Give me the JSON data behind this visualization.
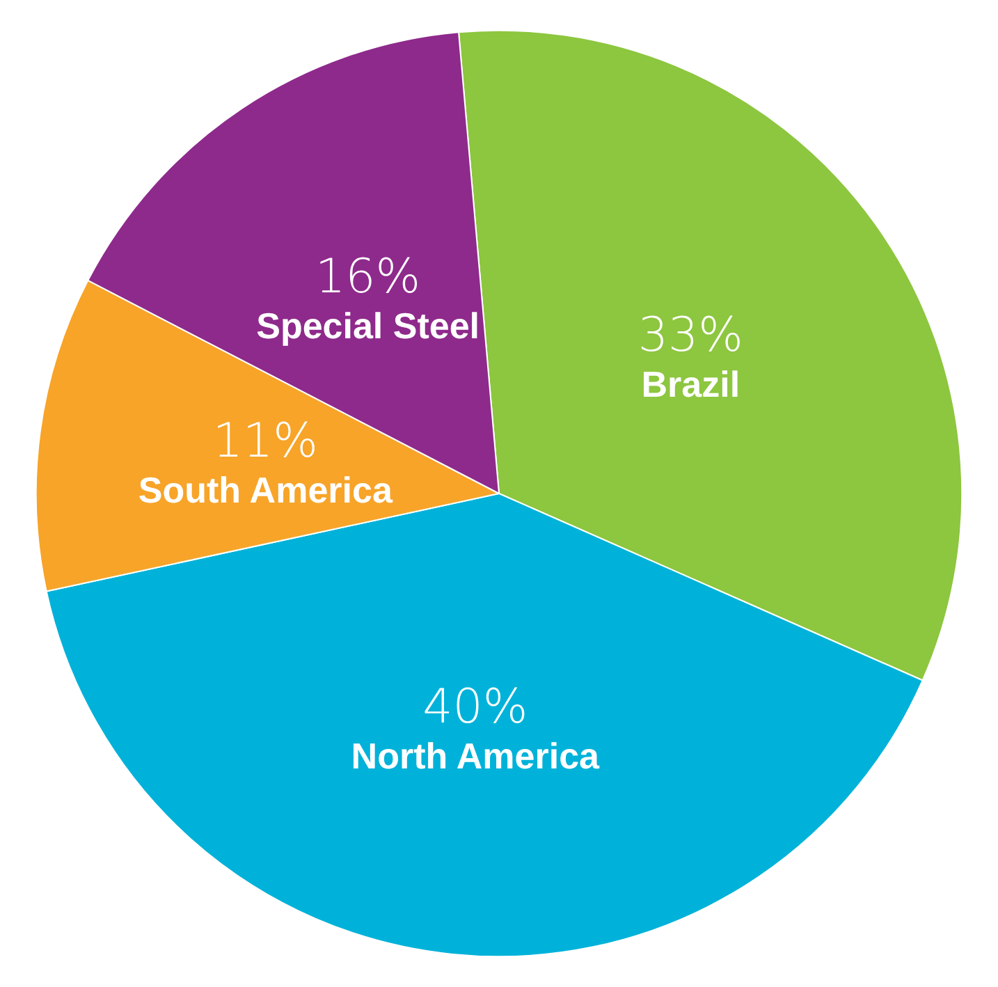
{
  "chart_data": {
    "type": "pie",
    "categories": [
      "Brazil",
      "North America",
      "South America",
      "Special Steel"
    ],
    "values": [
      33,
      40,
      11,
      16
    ],
    "colors": [
      "#8dc63f",
      "#00b2d9",
      "#f7a429",
      "#8e2a8b"
    ],
    "value_labels": [
      "33%",
      "40%",
      "11%",
      "16%"
    ],
    "legend": false
  }
}
